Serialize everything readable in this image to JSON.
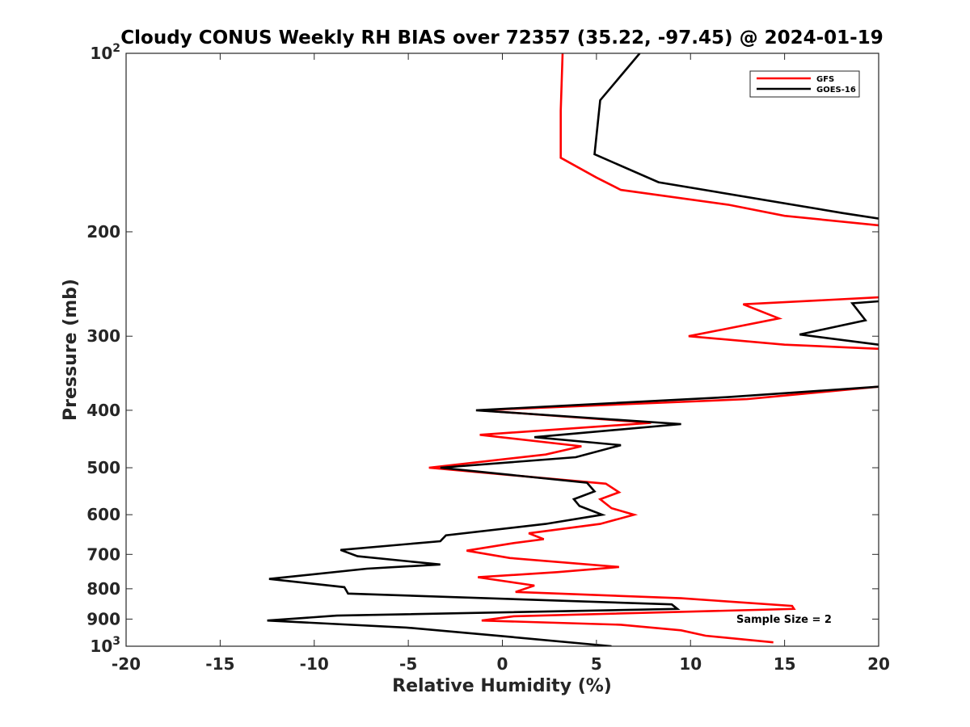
{
  "chart_data": {
    "type": "line",
    "title": "Cloudy CONUS Weekly RH BIAS over 72357 (35.22, -97.45) @ 2024-01-19",
    "xlabel": "Relative Humidity (%)",
    "ylabel": "Pressure (mb)",
    "xlim": [
      -20,
      20
    ],
    "ylim": [
      100,
      1000
    ],
    "yscale": "log",
    "y_reversed": true,
    "grid": false,
    "legend_position": "top-right",
    "x_ticks": [
      "-20",
      "-15",
      "-10",
      "-5",
      "0",
      "5",
      "10",
      "15",
      "20"
    ],
    "y_ticks": [
      {
        "value": 100,
        "base": "10",
        "exp": "2"
      },
      {
        "value": 200,
        "label": "200"
      },
      {
        "value": 300,
        "label": "300"
      },
      {
        "value": 400,
        "label": "400"
      },
      {
        "value": 500,
        "label": "500"
      },
      {
        "value": 600,
        "label": "600"
      },
      {
        "value": 700,
        "label": "700"
      },
      {
        "value": 800,
        "label": "800"
      },
      {
        "value": 900,
        "label": "900"
      },
      {
        "value": 1000,
        "base": "10",
        "exp": "3"
      }
    ],
    "annotation": "Sample Size = 2",
    "series": [
      {
        "name": "GFS",
        "color": "#ff0000",
        "points": [
          [
            3.2,
            100
          ],
          [
            3.1,
            125
          ],
          [
            3.1,
            150
          ],
          [
            5.0,
            162
          ],
          [
            6.3,
            170
          ],
          [
            12.0,
            180
          ],
          [
            15.0,
            188
          ],
          [
            20.0,
            195
          ],
          null,
          [
            20.0,
            258
          ],
          [
            12.8,
            265
          ],
          [
            14.7,
            280
          ],
          [
            9.9,
            300
          ],
          [
            15.0,
            310
          ],
          [
            20.0,
            315
          ],
          null,
          [
            20.0,
            365
          ],
          [
            13.0,
            383
          ],
          [
            -1.2,
            400
          ],
          [
            7.9,
            420
          ],
          [
            -1.2,
            440
          ],
          [
            4.2,
            460
          ],
          [
            2.3,
            475
          ],
          [
            -3.9,
            500
          ],
          [
            5.5,
            532
          ],
          [
            6.2,
            550
          ],
          [
            5.2,
            565
          ],
          [
            5.8,
            585
          ],
          [
            7.0,
            600
          ],
          [
            5.2,
            622
          ],
          [
            1.4,
            645
          ],
          [
            2.2,
            660
          ],
          [
            0.6,
            670
          ],
          [
            -1.9,
            690
          ],
          [
            0.4,
            710
          ],
          [
            6.2,
            735
          ],
          [
            2.9,
            750
          ],
          [
            -1.3,
            765
          ],
          [
            1.7,
            790
          ],
          [
            0.7,
            810
          ],
          [
            9.5,
            830
          ],
          [
            15.4,
            855
          ],
          [
            15.5,
            865
          ],
          [
            0.6,
            890
          ],
          [
            -1.1,
            905
          ],
          [
            6.3,
            920
          ],
          [
            9.5,
            940
          ],
          [
            10.8,
            960
          ],
          [
            14.4,
            985
          ]
        ]
      },
      {
        "name": "GOES-16",
        "color": "#000000",
        "points": [
          [
            7.3,
            100
          ],
          [
            5.2,
            120
          ],
          [
            4.9,
            148
          ],
          [
            8.3,
            165
          ],
          [
            18.1,
            186
          ],
          [
            20.0,
            190
          ],
          null,
          [
            20.0,
            262
          ],
          [
            18.6,
            264
          ],
          [
            19.3,
            282
          ],
          [
            15.8,
            298
          ],
          [
            20.0,
            310
          ],
          null,
          [
            20.0,
            365
          ],
          [
            12.0,
            380
          ],
          [
            -1.4,
            400
          ],
          [
            9.5,
            422
          ],
          [
            1.7,
            444
          ],
          [
            6.3,
            458
          ],
          [
            3.9,
            480
          ],
          [
            -3.3,
            500
          ],
          [
            4.5,
            530
          ],
          [
            4.9,
            548
          ],
          [
            3.8,
            565
          ],
          [
            4.1,
            580
          ],
          [
            5.3,
            600
          ],
          [
            2.3,
            622
          ],
          [
            -3.0,
            650
          ],
          [
            -3.3,
            665
          ],
          [
            -8.6,
            688
          ],
          [
            -7.7,
            705
          ],
          [
            -3.3,
            728
          ],
          [
            -7.2,
            740
          ],
          [
            -12.4,
            770
          ],
          [
            -8.4,
            795
          ],
          [
            -8.2,
            815
          ],
          [
            9.0,
            850
          ],
          [
            9.3,
            865
          ],
          [
            -8.8,
            888
          ],
          [
            -12.5,
            905
          ],
          [
            -5.1,
            930
          ],
          [
            0.5,
            965
          ],
          [
            5.8,
            1000
          ]
        ]
      }
    ]
  }
}
